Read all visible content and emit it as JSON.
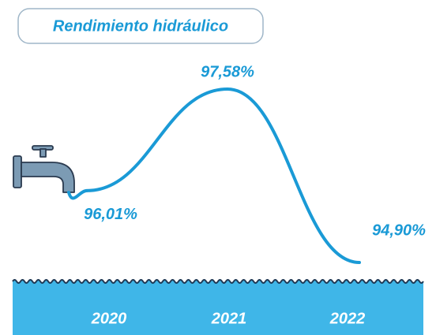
{
  "chart_data": {
    "type": "line",
    "title": "Rendimiento hidráulico",
    "categories": [
      "2020",
      "2021",
      "2022"
    ],
    "values": [
      96.01,
      97.58,
      94.9
    ],
    "value_labels": [
      "96,01%",
      "97,58%",
      "94,90%"
    ],
    "color": "#1a9ad6"
  }
}
